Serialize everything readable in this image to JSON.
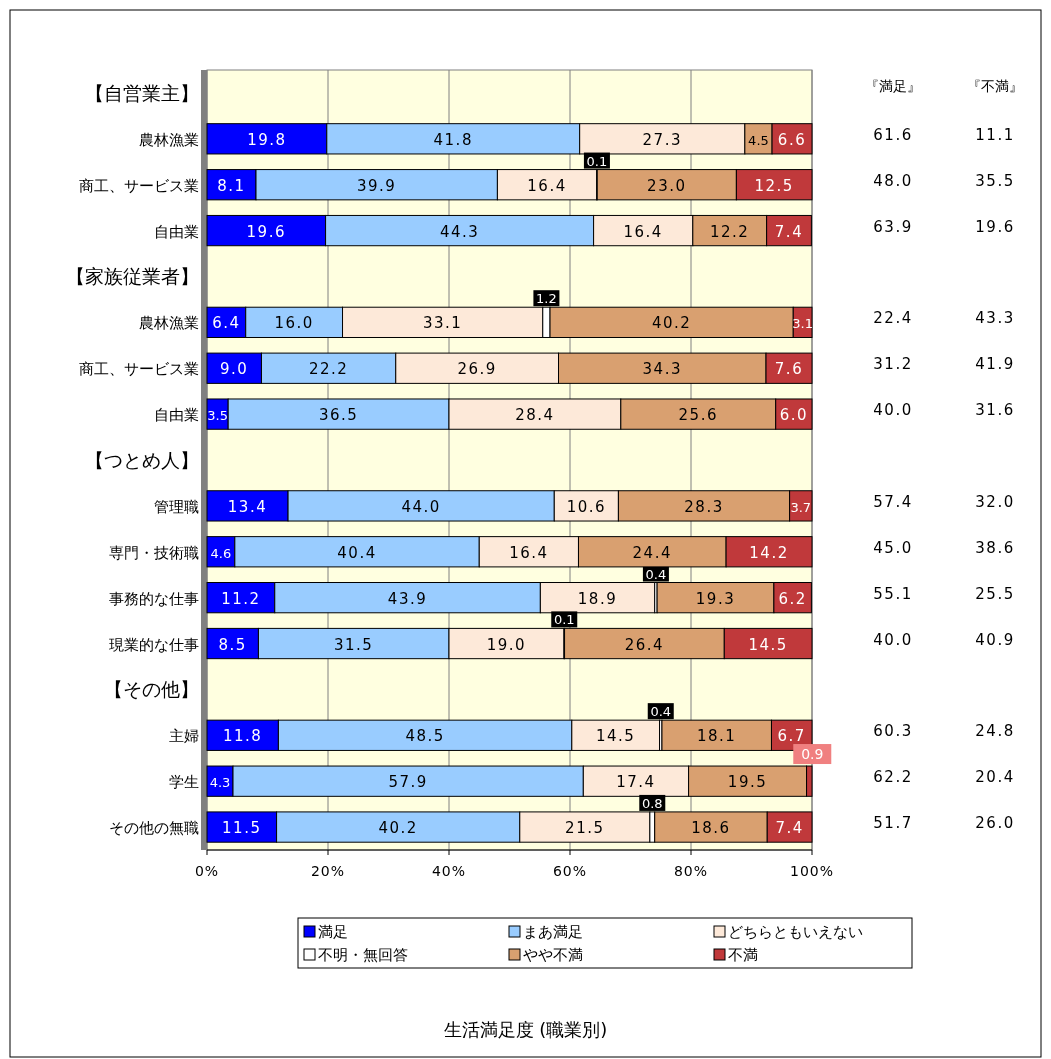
{
  "chart_data": {
    "type": "bar",
    "orientation": "horizontal",
    "stacked": true,
    "title": "生活満足度 (職業別)",
    "categories": [
      "【自営業主】",
      "農林漁業",
      "商工、サービス業",
      "自由業",
      "【家族従業者】",
      "農林漁業",
      "商工、サービス業",
      "自由業",
      "【つとめ人】",
      "管理職",
      "専門・技術職",
      "事務的な仕事",
      "現業的な仕事",
      "【その他】",
      "主婦",
      "学生",
      "その他の無職"
    ],
    "series": [
      {
        "name": "満足",
        "color": "#0000ff",
        "values": [
          null,
          19.8,
          8.1,
          19.6,
          null,
          6.4,
          9.0,
          3.5,
          null,
          13.4,
          4.6,
          11.2,
          8.5,
          null,
          11.8,
          4.3,
          11.5
        ],
        "value_labels": [
          null,
          "19.8",
          "8.1",
          "19.6",
          null,
          "6.4",
          "9.0",
          "3.5",
          null,
          "13.4",
          "4.6",
          "11.2",
          "8.5",
          null,
          "11.8",
          "4.3",
          "11.5"
        ]
      },
      {
        "name": "まあ満足",
        "color": "#99ccff",
        "values": [
          null,
          41.8,
          39.9,
          44.3,
          null,
          16.0,
          22.2,
          36.5,
          null,
          44.0,
          40.4,
          43.9,
          31.5,
          null,
          48.5,
          57.9,
          40.2
        ],
        "value_labels": [
          null,
          "41.8",
          "39.9",
          "44.3",
          null,
          "16.0",
          "22.2",
          "36.5",
          null,
          "44.0",
          "40.4",
          "43.9",
          "31.5",
          null,
          "48.5",
          "57.9",
          "40.2"
        ]
      },
      {
        "name": "どちらともいえない",
        "color": "#fde9d9",
        "values": [
          null,
          27.3,
          16.4,
          16.4,
          null,
          33.1,
          26.9,
          28.4,
          null,
          10.6,
          16.4,
          18.9,
          19.0,
          null,
          14.5,
          17.4,
          21.5
        ],
        "value_labels": [
          null,
          "27.3",
          "16.4",
          "16.4",
          null,
          "33.1",
          "26.9",
          "28.4",
          null,
          "10.6",
          "16.4",
          "18.9",
          "19.0",
          null,
          "14.5",
          "17.4",
          "21.5"
        ]
      },
      {
        "name": "不明・無回答",
        "color": "#ffffff",
        "values": [
          null,
          null,
          0.1,
          null,
          null,
          1.2,
          null,
          null,
          null,
          null,
          null,
          0.4,
          0.1,
          null,
          0.4,
          null,
          0.8
        ],
        "value_labels": [
          null,
          null,
          "0.1",
          null,
          null,
          "1.2",
          null,
          null,
          null,
          null,
          null,
          "0.4",
          "0.1",
          null,
          "0.4",
          null,
          "0.8"
        ]
      },
      {
        "name": "やや不満",
        "color": "#d9a070",
        "values": [
          null,
          4.5,
          23.0,
          12.2,
          null,
          40.2,
          34.3,
          25.6,
          null,
          28.3,
          24.4,
          19.3,
          26.4,
          null,
          18.1,
          19.5,
          18.6
        ],
        "value_labels": [
          null,
          "4.5",
          "23.0",
          "12.2",
          null,
          "40.2",
          "34.3",
          "25.6",
          null,
          "28.3",
          "24.4",
          "19.3",
          "26.4",
          null,
          "18.1",
          "19.5",
          "18.6"
        ]
      },
      {
        "name": "不満",
        "color": "#c0393b",
        "values": [
          null,
          6.6,
          12.5,
          7.4,
          null,
          3.1,
          7.6,
          6.0,
          null,
          3.7,
          14.2,
          6.2,
          14.5,
          null,
          6.7,
          0.9,
          7.4
        ],
        "value_labels": [
          null,
          "6.6",
          "12.5",
          "7.4",
          null,
          "3.1",
          "7.6",
          "6.0",
          null,
          "3.7",
          "14.2",
          "6.2",
          "14.5",
          null,
          "6.7",
          "0.9",
          "7.4"
        ]
      }
    ],
    "xlim": [
      0,
      100
    ],
    "xticks": [
      {
        "value": 0,
        "label": "0%"
      },
      {
        "value": 20,
        "label": "20%"
      },
      {
        "value": 40,
        "label": "40%"
      },
      {
        "value": 60,
        "label": "60%"
      },
      {
        "value": 80,
        "label": "80%"
      },
      {
        "value": 100,
        "label": "100%"
      }
    ],
    "grid": "x",
    "legend": "bottom",
    "annotations": [
      "『満足』",
      "『不満』",
      "61.6",
      "11.1",
      "48.0",
      "35.5",
      "63.9",
      "19.6",
      "22.4",
      "43.3",
      "31.2",
      "41.9",
      "40.0",
      "31.6",
      "57.4",
      "32.0",
      "45.0",
      "38.6",
      "55.1",
      "25.5",
      "40.0",
      "40.9",
      "60.3",
      "24.8",
      "62.2",
      "20.4",
      "51.7",
      "26.0"
    ]
  }
}
